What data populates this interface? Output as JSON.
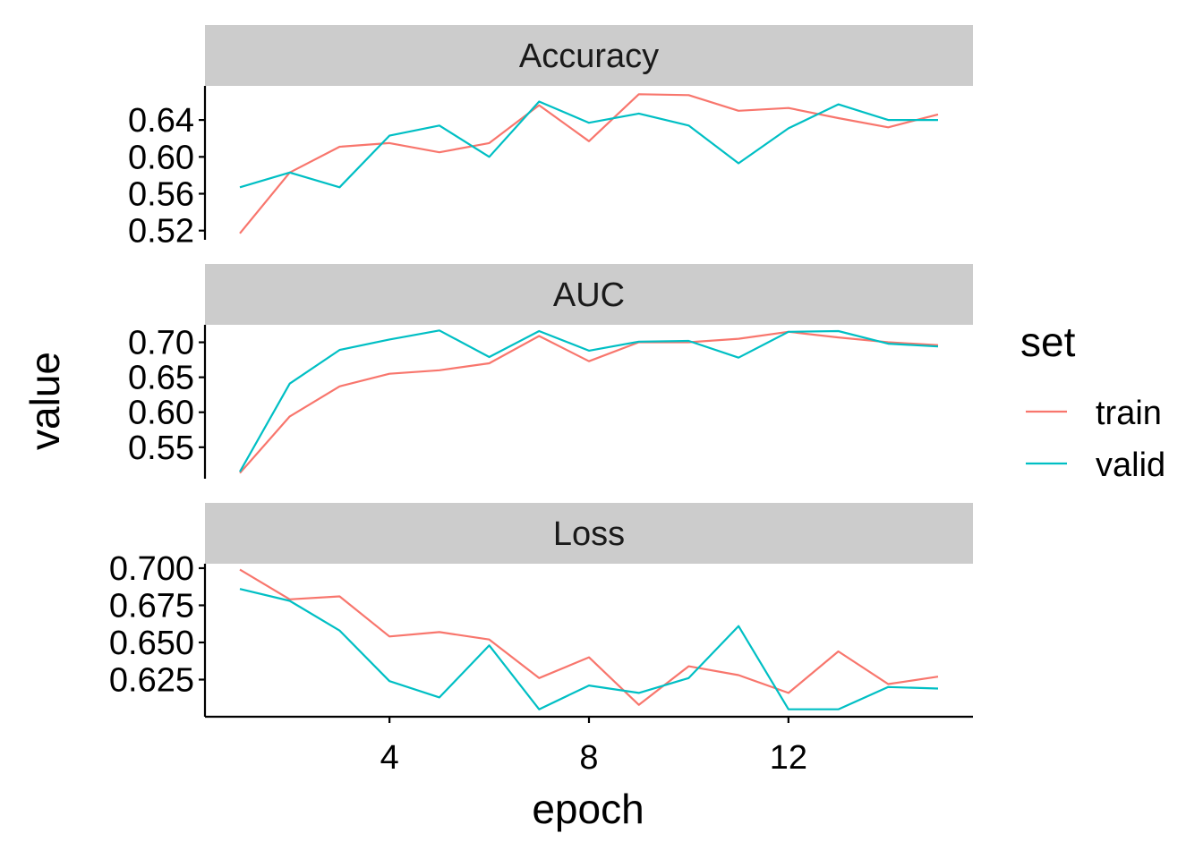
{
  "chart_data": {
    "type": "line",
    "facet_by": "metric",
    "x": [
      1,
      2,
      3,
      4,
      5,
      6,
      7,
      8,
      9,
      10,
      11,
      12,
      13,
      14,
      15
    ],
    "xlabel": "epoch",
    "ylabel": "value",
    "x_ticks": [
      4,
      8,
      12
    ],
    "xlim": [
      0.3,
      15.7
    ],
    "legend": {
      "title": "set",
      "position": "right",
      "entries": [
        {
          "name": "train",
          "color": "#F8766D"
        },
        {
          "name": "valid",
          "color": "#00BFC4"
        }
      ]
    },
    "grid": false,
    "panels": [
      {
        "title": "Accuracy",
        "ylim": [
          0.51,
          0.677
        ],
        "y_ticks": [
          0.52,
          0.56,
          0.6,
          0.64
        ],
        "y_tick_labels": [
          "0.52",
          "0.56",
          "0.60",
          "0.64"
        ],
        "series": [
          {
            "name": "train",
            "values": [
              0.517,
              0.583,
              0.611,
              0.615,
              0.605,
              0.615,
              0.656,
              0.617,
              0.668,
              0.667,
              0.65,
              0.653,
              0.642,
              0.632,
              0.646
            ]
          },
          {
            "name": "valid",
            "values": [
              0.567,
              0.583,
              0.567,
              0.623,
              0.634,
              0.6,
              0.66,
              0.637,
              0.647,
              0.634,
              0.593,
              0.631,
              0.657,
              0.64,
              0.64
            ]
          }
        ]
      },
      {
        "title": "AUC",
        "ylim": [
          0.505,
          0.725
        ],
        "y_ticks": [
          0.55,
          0.6,
          0.65,
          0.7
        ],
        "y_tick_labels": [
          "0.55",
          "0.60",
          "0.65",
          "0.70"
        ],
        "series": [
          {
            "name": "train",
            "values": [
              0.513,
              0.594,
              0.637,
              0.655,
              0.66,
              0.67,
              0.709,
              0.673,
              0.7,
              0.7,
              0.705,
              0.715,
              0.707,
              0.7,
              0.696
            ]
          },
          {
            "name": "valid",
            "values": [
              0.515,
              0.641,
              0.689,
              0.704,
              0.717,
              0.679,
              0.716,
              0.688,
              0.701,
              0.702,
              0.678,
              0.715,
              0.716,
              0.698,
              0.694
            ]
          }
        ]
      },
      {
        "title": "Loss",
        "ylim": [
          0.6,
          0.703
        ],
        "y_ticks": [
          0.625,
          0.65,
          0.675,
          0.7
        ],
        "y_tick_labels": [
          "0.625",
          "0.650",
          "0.675",
          "0.700"
        ],
        "series": [
          {
            "name": "train",
            "values": [
              0.699,
              0.679,
              0.681,
              0.654,
              0.657,
              0.652,
              0.626,
              0.64,
              0.608,
              0.634,
              0.628,
              0.616,
              0.644,
              0.622,
              0.627
            ]
          },
          {
            "name": "valid",
            "values": [
              0.686,
              0.678,
              0.658,
              0.624,
              0.613,
              0.648,
              0.605,
              0.621,
              0.616,
              0.626,
              0.661,
              0.605,
              0.605,
              0.62,
              0.619
            ]
          }
        ]
      }
    ]
  }
}
